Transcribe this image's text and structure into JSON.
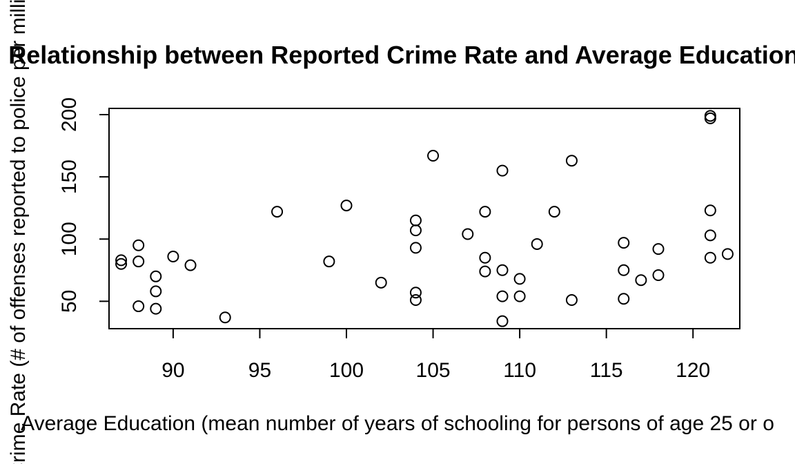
{
  "chart_data": {
    "type": "scatter",
    "title": "Relationship between Reported Crime Rate and Average Education for",
    "xlabel": "Average Education (mean number of years of schooling for persons of age 25 or o",
    "ylabel": "Crime Rate (# of offenses reported to police per million p",
    "xlim": [
      86.3,
      122.7
    ],
    "ylim": [
      28,
      205
    ],
    "x_ticks": [
      90,
      95,
      100,
      105,
      110,
      115,
      120
    ],
    "y_ticks": [
      50,
      100,
      150,
      200
    ],
    "grid": false,
    "points": [
      [
        87,
        83
      ],
      [
        87,
        80
      ],
      [
        88,
        95
      ],
      [
        88,
        82
      ],
      [
        88,
        46
      ],
      [
        89,
        70
      ],
      [
        89,
        58
      ],
      [
        89,
        44
      ],
      [
        90,
        86
      ],
      [
        91,
        79
      ],
      [
        93,
        37
      ],
      [
        96,
        122
      ],
      [
        99,
        82
      ],
      [
        100,
        127
      ],
      [
        102,
        65
      ],
      [
        104,
        115
      ],
      [
        104,
        107
      ],
      [
        104,
        93
      ],
      [
        104,
        57
      ],
      [
        104,
        51
      ],
      [
        105,
        167
      ],
      [
        107,
        104
      ],
      [
        108,
        122
      ],
      [
        108,
        85
      ],
      [
        108,
        74
      ],
      [
        109,
        155
      ],
      [
        109,
        75
      ],
      [
        109,
        54
      ],
      [
        109,
        34
      ],
      [
        110,
        68
      ],
      [
        110,
        54
      ],
      [
        111,
        96
      ],
      [
        112,
        122
      ],
      [
        113,
        163
      ],
      [
        113,
        51
      ],
      [
        116,
        97
      ],
      [
        116,
        75
      ],
      [
        116,
        52
      ],
      [
        117,
        67
      ],
      [
        118,
        92
      ],
      [
        118,
        71
      ],
      [
        121,
        199
      ],
      [
        121,
        197
      ],
      [
        121,
        123
      ],
      [
        121,
        103
      ],
      [
        121,
        85
      ],
      [
        122,
        88
      ]
    ]
  }
}
